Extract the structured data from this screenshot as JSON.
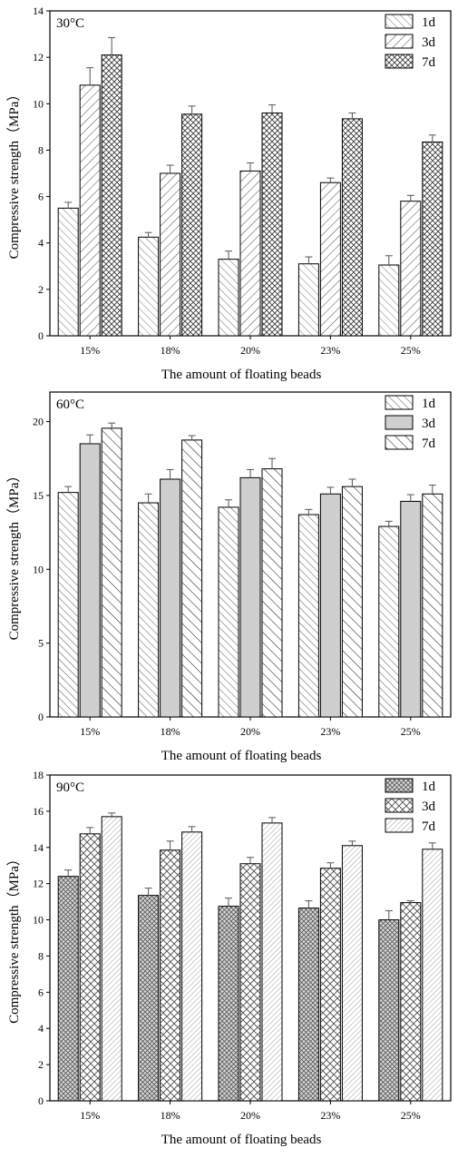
{
  "chart_data": [
    {
      "type": "bar",
      "panel_label": "30°C",
      "categories": [
        "15%",
        "18%",
        "20%",
        "23%",
        "25%"
      ],
      "series": [
        {
          "name": "1d",
          "values": [
            5.5,
            4.25,
            3.3,
            3.1,
            3.05
          ],
          "errors": [
            0.25,
            0.2,
            0.35,
            0.3,
            0.4
          ],
          "pattern": "1d-30"
        },
        {
          "name": "3d",
          "values": [
            10.8,
            7.0,
            7.1,
            6.6,
            5.8
          ],
          "errors": [
            0.75,
            0.35,
            0.35,
            0.2,
            0.25
          ],
          "pattern": "3d-30"
        },
        {
          "name": "7d",
          "values": [
            12.1,
            9.55,
            9.6,
            9.35,
            8.35
          ],
          "errors": [
            0.75,
            0.35,
            0.35,
            0.25,
            0.3
          ],
          "pattern": "7d-30"
        }
      ],
      "xlabel": "The amount of floating beads",
      "ylabel": "Compressive strength（MPa）",
      "ylim": [
        0,
        14
      ],
      "yticks": [
        0,
        2,
        4,
        6,
        8,
        10,
        12,
        14
      ],
      "legend": "top-right",
      "grid": false
    },
    {
      "type": "bar",
      "panel_label": "60°C",
      "categories": [
        "15%",
        "18%",
        "20%",
        "23%",
        "25%"
      ],
      "series": [
        {
          "name": "1d",
          "values": [
            15.2,
            14.5,
            14.2,
            13.7,
            12.9
          ],
          "errors": [
            0.4,
            0.6,
            0.5,
            0.35,
            0.35
          ],
          "pattern": "1d-60"
        },
        {
          "name": "3d",
          "values": [
            18.5,
            16.1,
            16.2,
            15.1,
            14.6
          ],
          "errors": [
            0.6,
            0.65,
            0.55,
            0.45,
            0.45
          ],
          "pattern": "3d-60"
        },
        {
          "name": "7d",
          "values": [
            19.55,
            18.75,
            16.8,
            15.6,
            15.1
          ],
          "errors": [
            0.35,
            0.3,
            0.7,
            0.5,
            0.6
          ],
          "pattern": "7d-60"
        }
      ],
      "xlabel": "The amount of floating beads",
      "ylabel": "Compressive strength（MPa）",
      "ylim": [
        0,
        22
      ],
      "yticks": [
        0,
        5,
        10,
        15,
        20
      ],
      "legend": "top-right",
      "grid": false
    },
    {
      "type": "bar",
      "panel_label": "90°C",
      "categories": [
        "15%",
        "18%",
        "20%",
        "23%",
        "25%"
      ],
      "series": [
        {
          "name": "1d",
          "values": [
            12.4,
            11.35,
            10.75,
            10.65,
            10.0
          ],
          "errors": [
            0.35,
            0.4,
            0.45,
            0.4,
            0.5
          ],
          "pattern": "1d-90"
        },
        {
          "name": "3d",
          "values": [
            14.75,
            13.85,
            13.1,
            12.85,
            10.95
          ],
          "errors": [
            0.35,
            0.5,
            0.35,
            0.3,
            0.1
          ],
          "pattern": "3d-90"
        },
        {
          "name": "7d",
          "values": [
            15.7,
            14.85,
            15.35,
            14.1,
            13.9
          ],
          "errors": [
            0.2,
            0.3,
            0.3,
            0.25,
            0.35
          ],
          "pattern": "7d-90"
        }
      ],
      "xlabel": "The amount of floating beads",
      "ylabel": "Compressive strength（MPa）",
      "ylim": [
        0,
        18
      ],
      "yticks": [
        0,
        2,
        4,
        6,
        8,
        10,
        12,
        14,
        16,
        18
      ],
      "legend": "top-right",
      "grid": false
    }
  ]
}
